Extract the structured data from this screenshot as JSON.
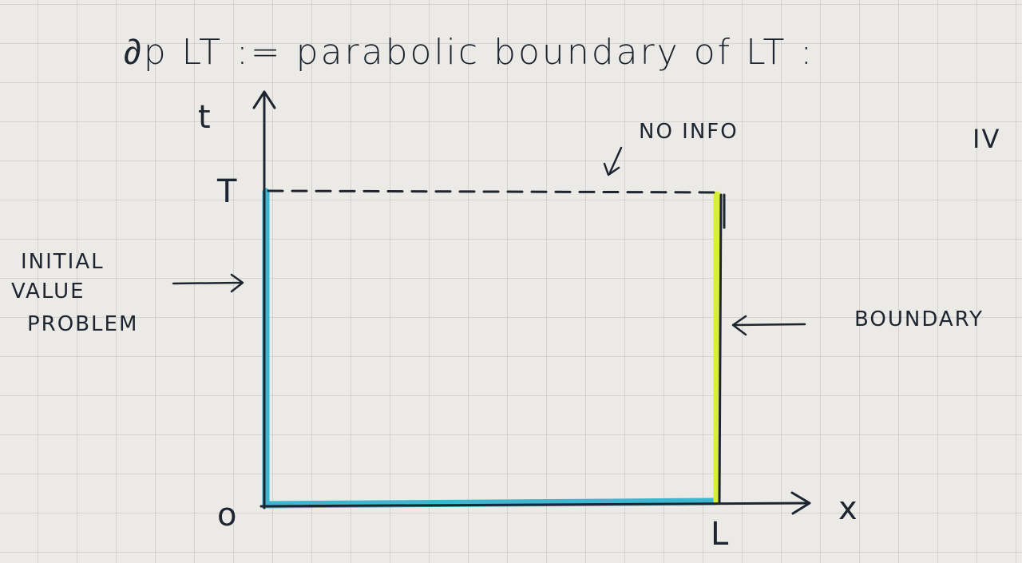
{
  "title": "∂p LT := parabolic boundary of LT :",
  "labels": {
    "t_axis": "t",
    "x_axis": "x",
    "origin": "o",
    "T_mark": "T",
    "L_mark": "L",
    "no_info": "NO INFO",
    "iv": "IV",
    "boundary": "BOUNDARY",
    "ivp_line1": "INITIAL",
    "ivp_line2": "VALUE",
    "ivp_line3": "PROBLEM"
  },
  "colors": {
    "ink": "#1d2530",
    "cyan": "#3fb6cf",
    "yellow": "#d8ef39",
    "paper": "#eceae6"
  }
}
